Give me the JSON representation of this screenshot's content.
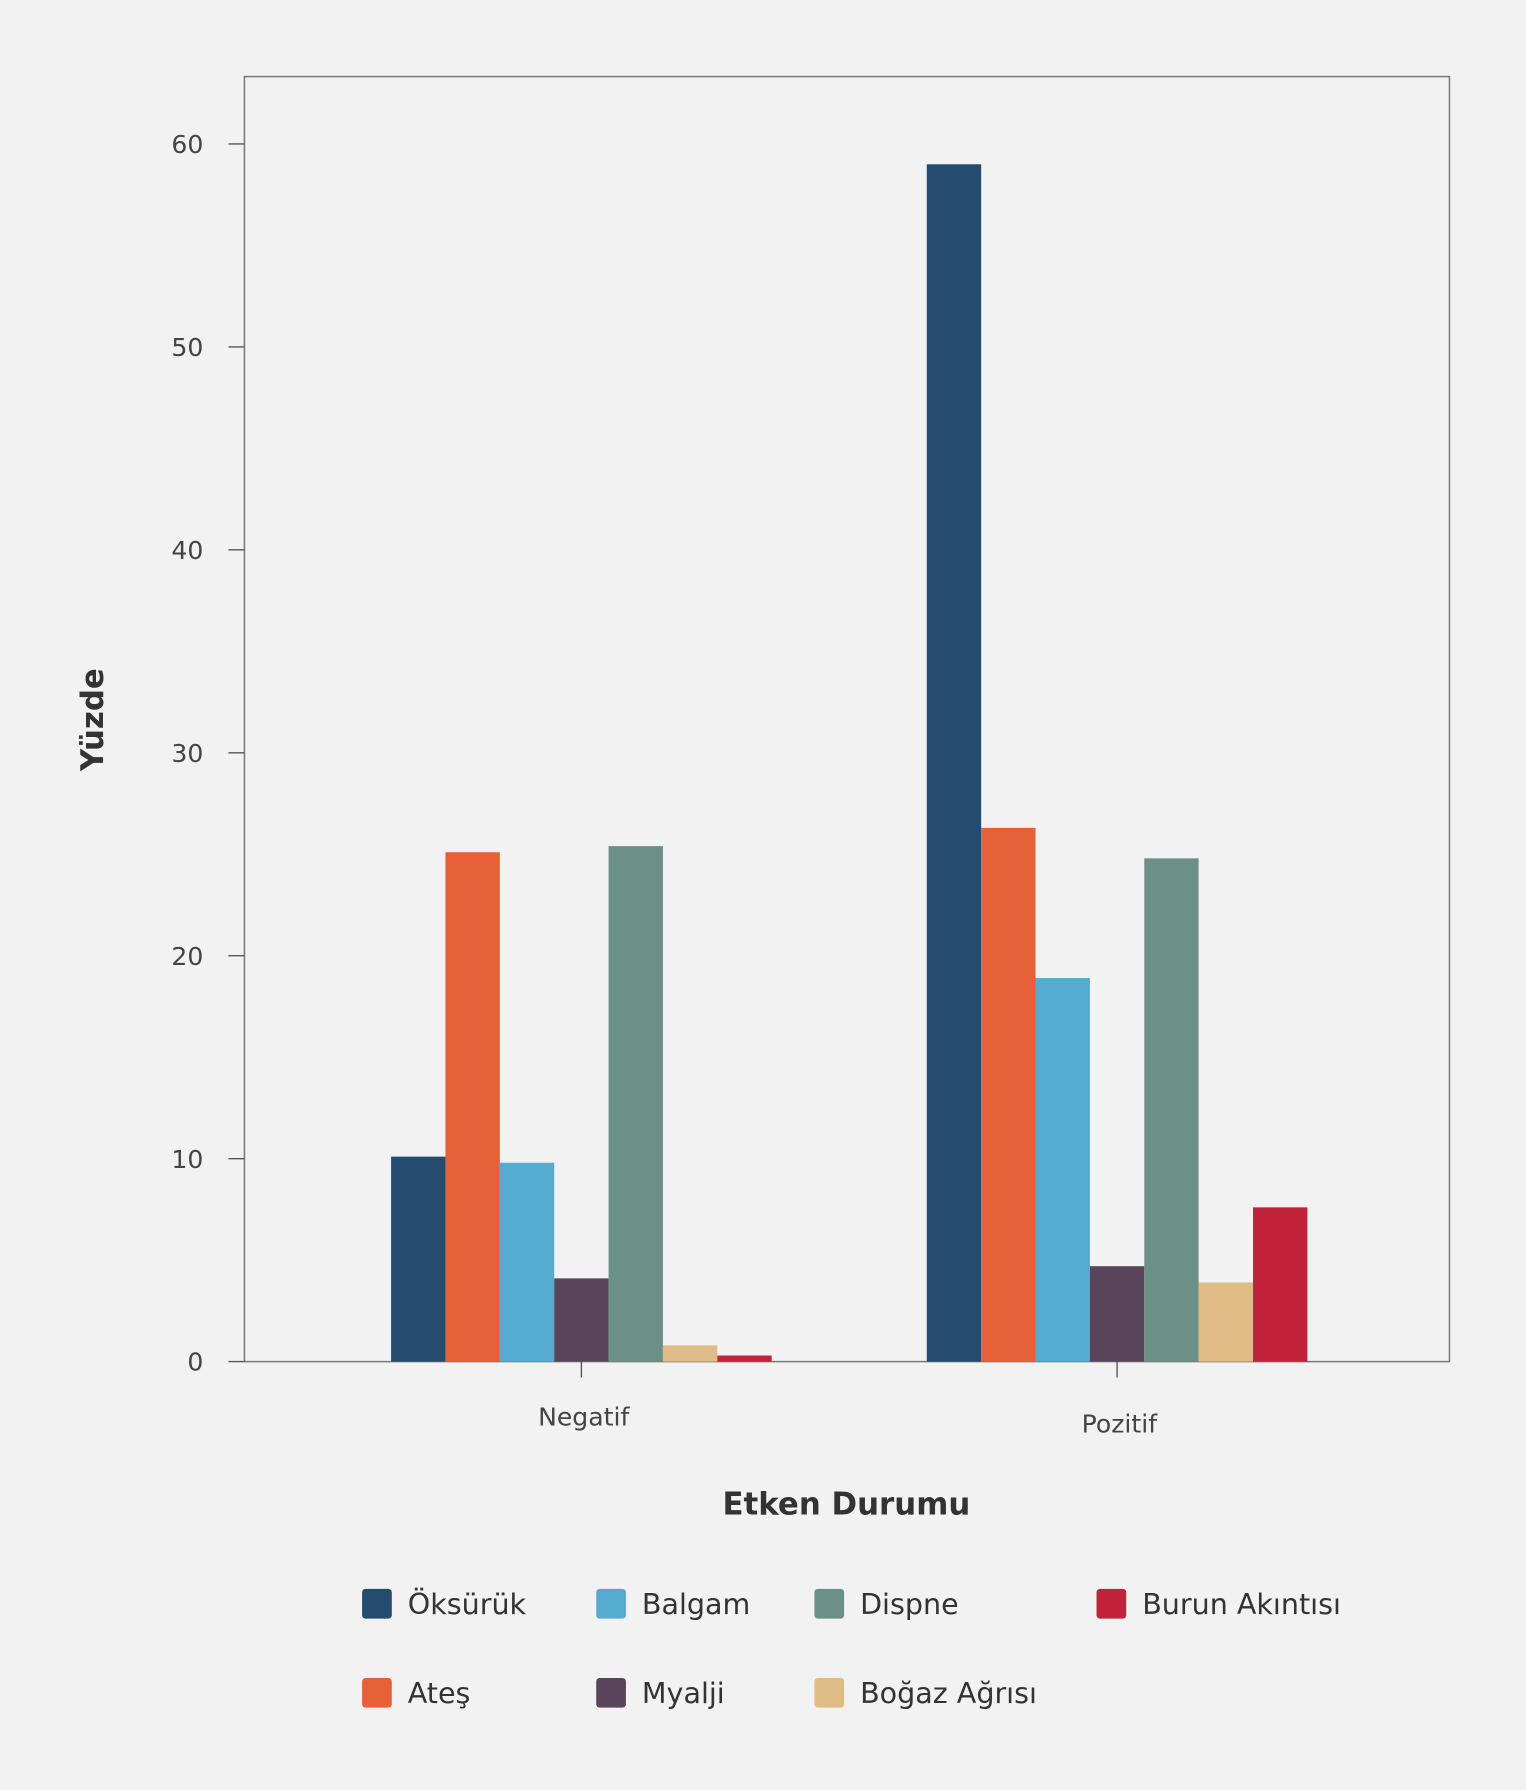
{
  "chart_data": {
    "type": "bar",
    "title": "",
    "xlabel": "Etken Durumu",
    "ylabel": "Yüzde",
    "ylim": [
      0,
      63.3
    ],
    "yticks": [
      0,
      10,
      20,
      30,
      40,
      50,
      60
    ],
    "categories": [
      "Negatif",
      "Pozitif"
    ],
    "legend_position": "bottom",
    "series": [
      {
        "name": "Öksürük",
        "color": "#254b6e",
        "values": [
          10.1,
          59.0
        ]
      },
      {
        "name": "Ateş",
        "color": "#e66038",
        "values": [
          25.1,
          26.3
        ]
      },
      {
        "name": "Balgam",
        "color": "#55acce",
        "values": [
          9.8,
          18.9
        ]
      },
      {
        "name": "Myalji",
        "color": "#5a4459",
        "values": [
          4.1,
          4.7
        ]
      },
      {
        "name": "Dispne",
        "color": "#6d9086",
        "values": [
          25.4,
          24.8
        ]
      },
      {
        "name": "Boğaz Ağrısı",
        "color": "#dfbb85",
        "values": [
          0.8,
          3.9
        ]
      },
      {
        "name": "Burun Akıntısı",
        "color": "#c1233b",
        "values": [
          0.3,
          7.6
        ]
      }
    ]
  }
}
